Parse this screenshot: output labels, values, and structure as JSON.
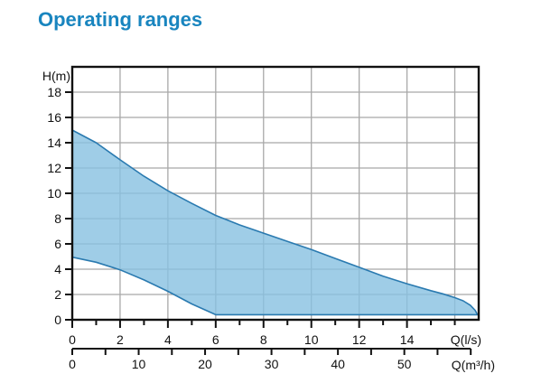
{
  "title": "Operating ranges",
  "colors": {
    "title": "#1985bf",
    "region_fill": "#87C1E1",
    "region_fill_opacity": 0.8,
    "region_stroke": "#2a7ab0",
    "grid": "#a8a8a8",
    "axis": "#111111",
    "text": "#111111"
  },
  "chart_data": {
    "type": "area",
    "title": "Operating ranges",
    "ylabel": "H(m)",
    "xlabel_primary": "Q(l/s)",
    "xlabel_secondary": "Q(m³/h)",
    "unit_conversion": "Q(m³/h) = Q(l/s) × 3.6",
    "xlim_ls": [
      0,
      17
    ],
    "ylim": [
      0,
      20
    ],
    "grid": true,
    "y_tick_step": 2,
    "y_ticks_labeled": [
      0,
      2,
      4,
      6,
      8,
      10,
      12,
      14,
      16,
      18
    ],
    "x_ticks_ls_minor_step": 1,
    "x_ticks_ls_minor_max": 16,
    "x_ticks_ls_labeled": [
      0,
      2,
      4,
      6,
      8,
      10,
      12,
      14
    ],
    "x_ticks_m3h_minor_step": 5,
    "x_ticks_m3h_minor_max": 60,
    "x_ticks_m3h_labeled": [
      0,
      10,
      20,
      30,
      40,
      50
    ],
    "grid_x_ls": [
      2,
      4,
      6,
      8,
      10,
      12,
      14,
      16
    ],
    "grid_y": [
      2,
      4,
      6,
      8,
      10,
      12,
      14,
      16,
      18
    ],
    "region": {
      "description": "pump operating envelope, H(m) vs Q(l/s)",
      "upper_boundary": [
        [
          0,
          15
        ],
        [
          1,
          14
        ],
        [
          2,
          12.65
        ],
        [
          3,
          11.35
        ],
        [
          4,
          10.2
        ],
        [
          5,
          9.2
        ],
        [
          6,
          8.25
        ],
        [
          7,
          7.5
        ],
        [
          8,
          6.85
        ],
        [
          9,
          6.2
        ],
        [
          10,
          5.55
        ],
        [
          11,
          4.85
        ],
        [
          12,
          4.15
        ],
        [
          13,
          3.45
        ],
        [
          14,
          2.85
        ],
        [
          15,
          2.3
        ],
        [
          15.5,
          2.05
        ],
        [
          16,
          1.75
        ],
        [
          16.35,
          1.5
        ],
        [
          16.65,
          1.15
        ],
        [
          16.85,
          0.75
        ],
        [
          16.95,
          0.4
        ]
      ],
      "lower_boundary": [
        [
          0,
          4.95
        ],
        [
          1,
          4.55
        ],
        [
          2,
          3.95
        ],
        [
          3,
          3.15
        ],
        [
          4,
          2.25
        ],
        [
          5,
          1.25
        ],
        [
          6,
          0.4
        ],
        [
          16.95,
          0.4
        ]
      ]
    }
  }
}
